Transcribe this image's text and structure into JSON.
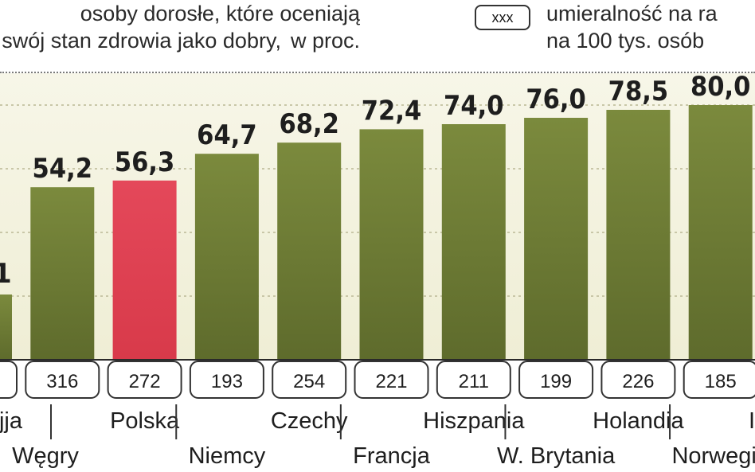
{
  "legend": {
    "bar_line1": "osoby dorosłe, które oceniają",
    "bar_line2": "swój stan zdrowia jako dobry,",
    "bar_unit": "w proc.",
    "box_label": "xxx",
    "box_line1": "umieralność na ra",
    "box_line2": "na 100 tys. osób"
  },
  "colors": {
    "bar": "#5e6b2c",
    "highlight": "#d83a4a",
    "background": "#efeed5"
  },
  "chart_data": {
    "type": "bar",
    "title": "",
    "xlabel": "",
    "ylabel": "",
    "ylim": [
      0,
      90
    ],
    "grid": true,
    "categories": [
      "jja",
      "Węgry",
      "Polska",
      "Niemcy",
      "Czechy",
      "Francja",
      "Hiszpania",
      "W. Brytania",
      "Holandia",
      "Norwegia",
      "I"
    ],
    "values": [
      null,
      54.2,
      56.3,
      64.7,
      68.2,
      72.4,
      74.0,
      76.0,
      78.5,
      80.0,
      null
    ],
    "value_labels": [
      "1",
      "54,2",
      "56,3",
      "64,7",
      "68,2",
      "72,4",
      "74,0",
      "76,0",
      "78,5",
      "80,0",
      ""
    ],
    "mortality": [
      "",
      "316",
      "272",
      "193",
      "254",
      "221",
      "211",
      "199",
      "226",
      "185",
      ""
    ],
    "highlight": "Polska"
  }
}
